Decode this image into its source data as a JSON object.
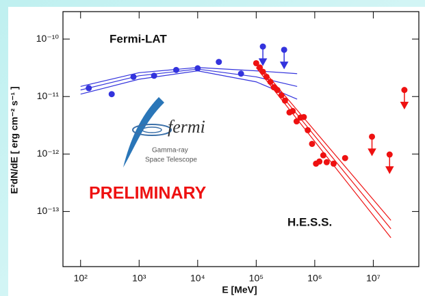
{
  "chart_data": {
    "type": "scatter",
    "xlabel": "E [MeV]",
    "ylabel": "E²dN/dE [ erg cm⁻² s⁻¹ ]",
    "xscale": "log",
    "yscale": "log",
    "xlim": [
      50,
      60000000
    ],
    "ylim": [
      1.1e-14,
      3e-10
    ],
    "xticks": [
      {
        "value": 100,
        "label": "10²"
      },
      {
        "value": 1000,
        "label": "10³"
      },
      {
        "value": 10000,
        "label": "10⁴"
      },
      {
        "value": 100000,
        "label": "10⁵"
      },
      {
        "value": 1000000,
        "label": "10⁶"
      },
      {
        "value": 10000000,
        "label": "10⁷"
      }
    ],
    "yticks": [
      {
        "value": 1e-10,
        "label": "10⁻¹⁰"
      },
      {
        "value": 1e-11,
        "label": "10⁻¹¹"
      },
      {
        "value": 1e-12,
        "label": "10⁻¹²"
      },
      {
        "value": 1e-13,
        "label": "10⁻¹³"
      }
    ],
    "annotations": [
      "Fermi-LAT",
      "H.E.S.S.",
      "PRELIMINARY"
    ],
    "logo": {
      "name": "fermi",
      "line1": "Gamma-ray",
      "line2": "Space Telescope"
    },
    "series": [
      {
        "kind": "points",
        "color": "#3333dd",
        "x": [
          138,
          340,
          800,
          1800,
          4300,
          10000,
          23000,
          55000
        ],
        "values": [
          1.4e-11,
          1.1e-11,
          2.2e-11,
          2.3e-11,
          2.9e-11,
          3.1e-11,
          4e-11,
          2.5e-11
        ]
      },
      {
        "kind": "upper_limits",
        "color": "#3333dd",
        "x": [
          130000,
          300000
        ],
        "values": [
          7.4e-11,
          6.5e-11
        ]
      },
      {
        "kind": "points",
        "color": "#ee1111",
        "x": [
          100000,
          115000,
          130000,
          150000,
          175000,
          200000,
          230000,
          270000,
          310000,
          370000,
          420000,
          490000,
          570000,
          650000,
          760000,
          900000,
          1050000,
          1200000,
          1400000,
          1600000,
          2100000,
          3300000
        ],
        "values": [
          3.8e-11,
          3.2e-11,
          2.7e-11,
          2.2e-11,
          1.8e-11,
          1.45e-11,
          1.3e-11,
          1.05e-11,
          8.5e-12,
          5.3e-12,
          5.6e-12,
          3.7e-12,
          4.3e-12,
          4.4e-12,
          2.6e-12,
          1.5e-12,
          6.8e-13,
          7.4e-13,
          9.5e-13,
          7.2e-13,
          6.8e-13,
          8.5e-13
        ]
      },
      {
        "kind": "upper_limits",
        "color": "#ee1111",
        "x": [
          9500000,
          19000000,
          34000000
        ],
        "values": [
          2e-12,
          9.8e-13,
          1.3e-11
        ]
      },
      {
        "kind": "line",
        "color": "#3333dd",
        "x": [
          100,
          1000,
          10000,
          100000,
          500000
        ],
        "values": [
          1.5e-11,
          2.6e-11,
          3.2e-11,
          2.8e-11,
          2.5e-11
        ]
      },
      {
        "kind": "line",
        "color": "#3333dd",
        "x": [
          100,
          1000,
          10000,
          100000,
          500000
        ],
        "values": [
          1.3e-11,
          2.3e-11,
          3e-11,
          2.2e-11,
          1.5e-11
        ]
      },
      {
        "kind": "line",
        "color": "#3333dd",
        "x": [
          100,
          1000,
          10000,
          100000,
          500000
        ],
        "values": [
          1.1e-11,
          2e-11,
          2.8e-11,
          1.8e-11,
          9e-12
        ]
      },
      {
        "kind": "line",
        "color": "#ee1111",
        "x": [
          100000,
          20000000
        ],
        "values": [
          4e-11,
          7e-14
        ]
      },
      {
        "kind": "line",
        "color": "#ee1111",
        "x": [
          100000,
          20000000
        ],
        "values": [
          3.6e-11,
          5e-14
        ]
      },
      {
        "kind": "line",
        "color": "#ee1111",
        "x": [
          100000,
          20000000
        ],
        "values": [
          3.2e-11,
          3.5e-14
        ]
      }
    ]
  }
}
